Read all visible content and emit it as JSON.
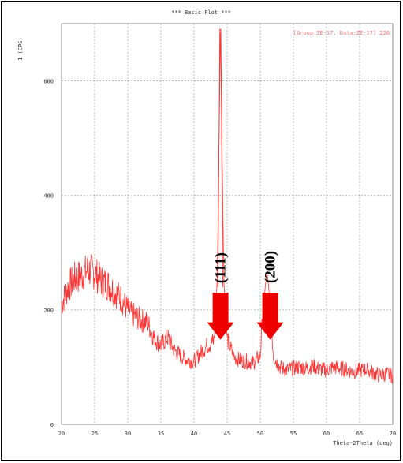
{
  "window": {
    "title": "*** Basic Plot ***",
    "ylabel": "I (CPS)",
    "xlabel": "Theta-2Theta (deg)",
    "legend": "[Group:ZE-17, Data:ZE-17] 226"
  },
  "colors": {
    "trace": "#ff3333",
    "arrow": "#ee0000",
    "grid": "#aaaaaa",
    "frame": "#000000",
    "plot_border": "#888888"
  },
  "chart_data": {
    "type": "line",
    "xlabel": "Theta-2Theta (deg)",
    "ylabel": "I (CPS)",
    "xlim": [
      20,
      70
    ],
    "ylim": [
      0,
      700
    ],
    "xticks": [
      20,
      25,
      30,
      35,
      40,
      45,
      50,
      55,
      60,
      65,
      70
    ],
    "yticks": [
      0,
      200,
      400,
      600
    ],
    "grid": true,
    "legend_position": "top-right",
    "series": [
      {
        "name": "[Group:ZE-17, Data:ZE-17] 226",
        "x": [
          20,
          21,
          22,
          23,
          24,
          25,
          26,
          27,
          28,
          29,
          30,
          31,
          32,
          33,
          34,
          35,
          36,
          37,
          38,
          39,
          40,
          41,
          42,
          43,
          43.5,
          44,
          44.5,
          45,
          46,
          47,
          48,
          49,
          50,
          50.5,
          51,
          51.5,
          52,
          53,
          54,
          55,
          56,
          57,
          58,
          59,
          60,
          61,
          62,
          63,
          64,
          65,
          66,
          67,
          68,
          69,
          70
        ],
        "y": [
          210,
          240,
          255,
          260,
          270,
          265,
          250,
          245,
          232,
          220,
          200,
          190,
          182,
          178,
          150,
          138,
          152,
          130,
          120,
          112,
          110,
          125,
          138,
          145,
          250,
          690,
          255,
          150,
          118,
          112,
          110,
          108,
          120,
          215,
          265,
          210,
          118,
          100,
          95,
          98,
          100,
          98,
          102,
          96,
          95,
          100,
          98,
          96,
          92,
          94,
          96,
          90,
          86,
          88,
          85
        ]
      }
    ],
    "annotations": [
      {
        "text": "(111)",
        "x": 44,
        "y_top": 230,
        "y_tip": 148
      },
      {
        "text": "(200)",
        "x": 51.5,
        "y_top": 230,
        "y_tip": 148
      }
    ]
  }
}
